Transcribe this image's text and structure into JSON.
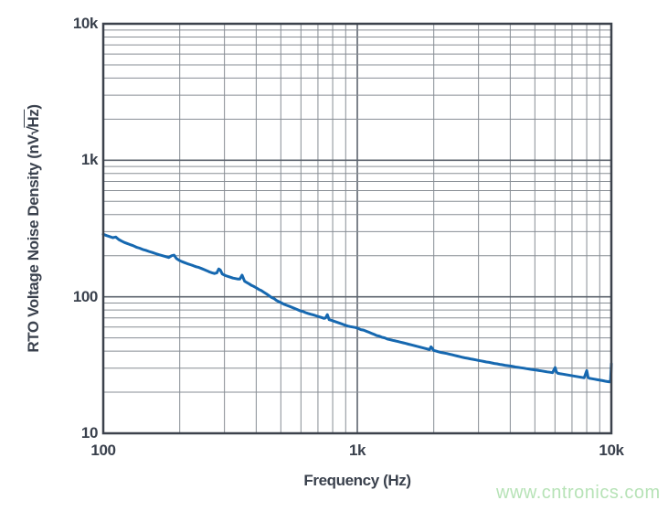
{
  "axes": {
    "x_title": "Frequency (Hz)",
    "y_title_prefix": "RTO Voltage Noise Density (nV",
    "y_title_radical": "√",
    "y_title_overline": "Hz",
    "y_title_suffix": ")"
  },
  "watermark": {
    "text": "www.cntronics.com",
    "color": "#b7e3b7"
  },
  "colors": {
    "background": "#ffffff",
    "curve": "#1668b0",
    "grid_minor": "#878d94",
    "grid_major": "#5d646e",
    "frame": "#3c424c",
    "text": "#3a414d"
  },
  "chart_data": {
    "type": "line",
    "title": "",
    "xlabel": "Frequency (Hz)",
    "ylabel": "RTO Voltage Noise Density (nV√Hz)",
    "x_scale": "log",
    "y_scale": "log",
    "xlim": [
      100,
      10000
    ],
    "ylim": [
      10,
      10000
    ],
    "grid": "log major and minor gridlines on both axes",
    "legend": "none",
    "x_ticks": [
      {
        "label": "100",
        "value": 100
      },
      {
        "label": "1k",
        "value": 1000
      },
      {
        "label": "10k",
        "value": 10000
      }
    ],
    "y_ticks": [
      {
        "label": "10k",
        "value": 10000
      },
      {
        "label": "1k",
        "value": 1000
      },
      {
        "label": "100",
        "value": 100
      },
      {
        "label": "10",
        "value": 10
      }
    ],
    "series": [
      {
        "name": "RTO voltage noise density",
        "color": "#1668b0",
        "points": [
          [
            100,
            287
          ],
          [
            103,
            281
          ],
          [
            106,
            276
          ],
          [
            109,
            271
          ],
          [
            112,
            274
          ],
          [
            115,
            263
          ],
          [
            118,
            256
          ],
          [
            121,
            250
          ],
          [
            124,
            246
          ],
          [
            127,
            242
          ],
          [
            131,
            237
          ],
          [
            135,
            231
          ],
          [
            139,
            227
          ],
          [
            143,
            222
          ],
          [
            147,
            219
          ],
          [
            151,
            215
          ],
          [
            156,
            211
          ],
          [
            161,
            207
          ],
          [
            166,
            203
          ],
          [
            171,
            200
          ],
          [
            176,
            197
          ],
          [
            181,
            194
          ],
          [
            186,
            200
          ],
          [
            190,
            202
          ],
          [
            194,
            191
          ],
          [
            199,
            185
          ],
          [
            204,
            181
          ],
          [
            209,
            178
          ],
          [
            214,
            175
          ],
          [
            220,
            172
          ],
          [
            226,
            169
          ],
          [
            232,
            166
          ],
          [
            238,
            164
          ],
          [
            244,
            161
          ],
          [
            250,
            158
          ],
          [
            256,
            155
          ],
          [
            262,
            152
          ],
          [
            268,
            150
          ],
          [
            274,
            148
          ],
          [
            280,
            150
          ],
          [
            285,
            160
          ],
          [
            289,
            157
          ],
          [
            294,
            147
          ],
          [
            296,
            146
          ],
          [
            303,
            143
          ],
          [
            310,
            141
          ],
          [
            317,
            139
          ],
          [
            324,
            137
          ],
          [
            331,
            136
          ],
          [
            338,
            135
          ],
          [
            345,
            135
          ],
          [
            352,
            144
          ],
          [
            360,
            130
          ],
          [
            368,
            127
          ],
          [
            376,
            124
          ],
          [
            384,
            121
          ],
          [
            392,
            119
          ],
          [
            401,
            116
          ],
          [
            410,
            113
          ],
          [
            419,
            111
          ],
          [
            429,
            108
          ],
          [
            439,
            105
          ],
          [
            449,
            102
          ],
          [
            459,
            99
          ],
          [
            470,
            97
          ],
          [
            481,
            94
          ],
          [
            492,
            92
          ],
          [
            504,
            90
          ],
          [
            516,
            88
          ],
          [
            529,
            86.5
          ],
          [
            542,
            85
          ],
          [
            555,
            83.5
          ],
          [
            568,
            82
          ],
          [
            582,
            80.5
          ],
          [
            596,
            79
          ],
          [
            611,
            78
          ],
          [
            626,
            76.5
          ],
          [
            641,
            75.5
          ],
          [
            657,
            74.5
          ],
          [
            673,
            73.5
          ],
          [
            689,
            72.5
          ],
          [
            706,
            71.5
          ],
          [
            723,
            70.5
          ],
          [
            740,
            69.5
          ],
          [
            750,
            70
          ],
          [
            762,
            74
          ],
          [
            775,
            68
          ],
          [
            794,
            67
          ],
          [
            813,
            66
          ],
          [
            833,
            65
          ],
          [
            853,
            64
          ],
          [
            874,
            63
          ],
          [
            895,
            62
          ],
          [
            917,
            61
          ],
          [
            939,
            60.5
          ],
          [
            962,
            60
          ],
          [
            985,
            59.5
          ],
          [
            1009,
            58.5
          ],
          [
            1033,
            57.5
          ],
          [
            1058,
            57
          ],
          [
            1084,
            56
          ],
          [
            1110,
            55
          ],
          [
            1137,
            54
          ],
          [
            1165,
            53
          ],
          [
            1193,
            52
          ],
          [
            1222,
            51.5
          ],
          [
            1252,
            50.5
          ],
          [
            1282,
            50
          ],
          [
            1313,
            49
          ],
          [
            1345,
            48.5
          ],
          [
            1378,
            48
          ],
          [
            1411,
            47.5
          ],
          [
            1445,
            47
          ],
          [
            1480,
            46.5
          ],
          [
            1516,
            46
          ],
          [
            1553,
            45.5
          ],
          [
            1590,
            45
          ],
          [
            1629,
            44.5
          ],
          [
            1668,
            44
          ],
          [
            1709,
            43.5
          ],
          [
            1750,
            43
          ],
          [
            1793,
            42.5
          ],
          [
            1836,
            42
          ],
          [
            1881,
            41.5
          ],
          [
            1926,
            41
          ],
          [
            1950,
            43
          ],
          [
            1973,
            42
          ],
          [
            1995,
            40.5
          ],
          [
            2043,
            40
          ],
          [
            2093,
            39.5
          ],
          [
            2144,
            39
          ],
          [
            2196,
            38.7
          ],
          [
            2249,
            38.4
          ],
          [
            2304,
            38
          ],
          [
            2360,
            37.6
          ],
          [
            2417,
            37.2
          ],
          [
            2476,
            36.8
          ],
          [
            2536,
            36.4
          ],
          [
            2597,
            36
          ],
          [
            2660,
            35.7
          ],
          [
            2725,
            35.4
          ],
          [
            2791,
            35.1
          ],
          [
            2859,
            34.8
          ],
          [
            2928,
            34.5
          ],
          [
            2999,
            34.2
          ],
          [
            3072,
            33.9
          ],
          [
            3147,
            33.6
          ],
          [
            3223,
            33.3
          ],
          [
            3301,
            33.1
          ],
          [
            3381,
            32.8
          ],
          [
            3463,
            32.5
          ],
          [
            3547,
            32.3
          ],
          [
            3633,
            32
          ],
          [
            3721,
            31.8
          ],
          [
            3811,
            31.5
          ],
          [
            3904,
            31.3
          ],
          [
            3998,
            31.1
          ],
          [
            4095,
            30.9
          ],
          [
            4194,
            30.6
          ],
          [
            4296,
            30.4
          ],
          [
            4400,
            30.2
          ],
          [
            4507,
            30
          ],
          [
            4616,
            29.8
          ],
          [
            4728,
            29.6
          ],
          [
            4843,
            29.4
          ],
          [
            4960,
            29.2
          ],
          [
            5080,
            29
          ],
          [
            5203,
            28.8
          ],
          [
            5329,
            28.6
          ],
          [
            5458,
            28.4
          ],
          [
            5591,
            28.2
          ],
          [
            5726,
            28
          ],
          [
            5865,
            27.8
          ],
          [
            6007,
            30.3
          ],
          [
            6080,
            28.2
          ],
          [
            6153,
            27.5
          ],
          [
            6302,
            27.3
          ],
          [
            6455,
            27.1
          ],
          [
            6611,
            26.9
          ],
          [
            6771,
            26.7
          ],
          [
            6935,
            26.5
          ],
          [
            7103,
            26.3
          ],
          [
            7275,
            26.1
          ],
          [
            7451,
            25.9
          ],
          [
            7632,
            25.7
          ],
          [
            7817,
            25.5
          ],
          [
            8006,
            28.8
          ],
          [
            8100,
            25.6
          ],
          [
            8200,
            25.3
          ],
          [
            8399,
            25.1
          ],
          [
            8602,
            24.9
          ],
          [
            8810,
            24.7
          ],
          [
            9024,
            24.5
          ],
          [
            9242,
            24.3
          ],
          [
            9466,
            24.1
          ],
          [
            9695,
            23.9
          ],
          [
            9850,
            23.8
          ],
          [
            9930,
            24.6
          ],
          [
            10000,
            32.3
          ]
        ]
      }
    ]
  }
}
